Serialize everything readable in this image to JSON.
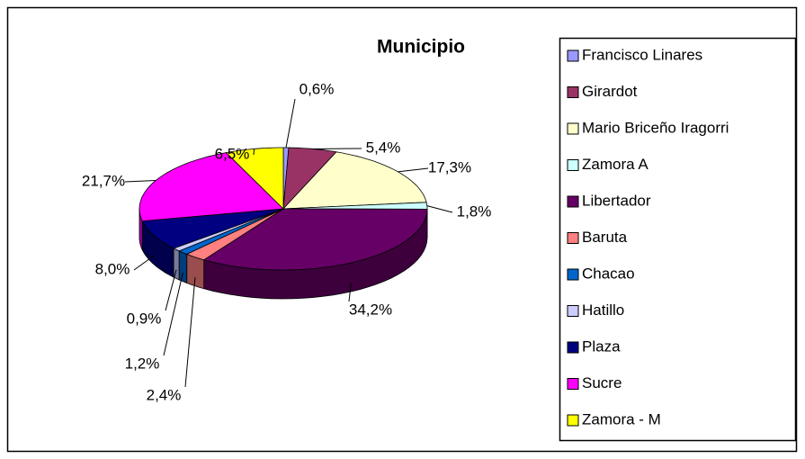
{
  "chart_data": {
    "type": "pie3d",
    "title": "Municipio",
    "categories": [
      "Francisco Linares",
      "Girardot",
      "Mario Briceño Iragorri",
      "Zamora A",
      "Libertador",
      "Baruta",
      "Chacao",
      "Hatillo",
      "Plaza",
      "Sucre",
      "Zamora - M"
    ],
    "values": [
      0.6,
      5.4,
      17.3,
      1.8,
      34.2,
      2.4,
      1.2,
      0.9,
      8.0,
      21.7,
      6.5
    ],
    "value_labels": [
      "0,6%",
      "5,4%",
      "17,3%",
      "1,8%",
      "34,2%",
      "2,4%",
      "1,2%",
      "0,9%",
      "8,0%",
      "21,7%",
      "6,5%"
    ],
    "colors": [
      "#9999ff",
      "#993366",
      "#ffffcc",
      "#ccffff",
      "#660066",
      "#ff8080",
      "#0066cc",
      "#ccccff",
      "#000080",
      "#ff00ff",
      "#ffff00"
    ],
    "legend": "right"
  }
}
